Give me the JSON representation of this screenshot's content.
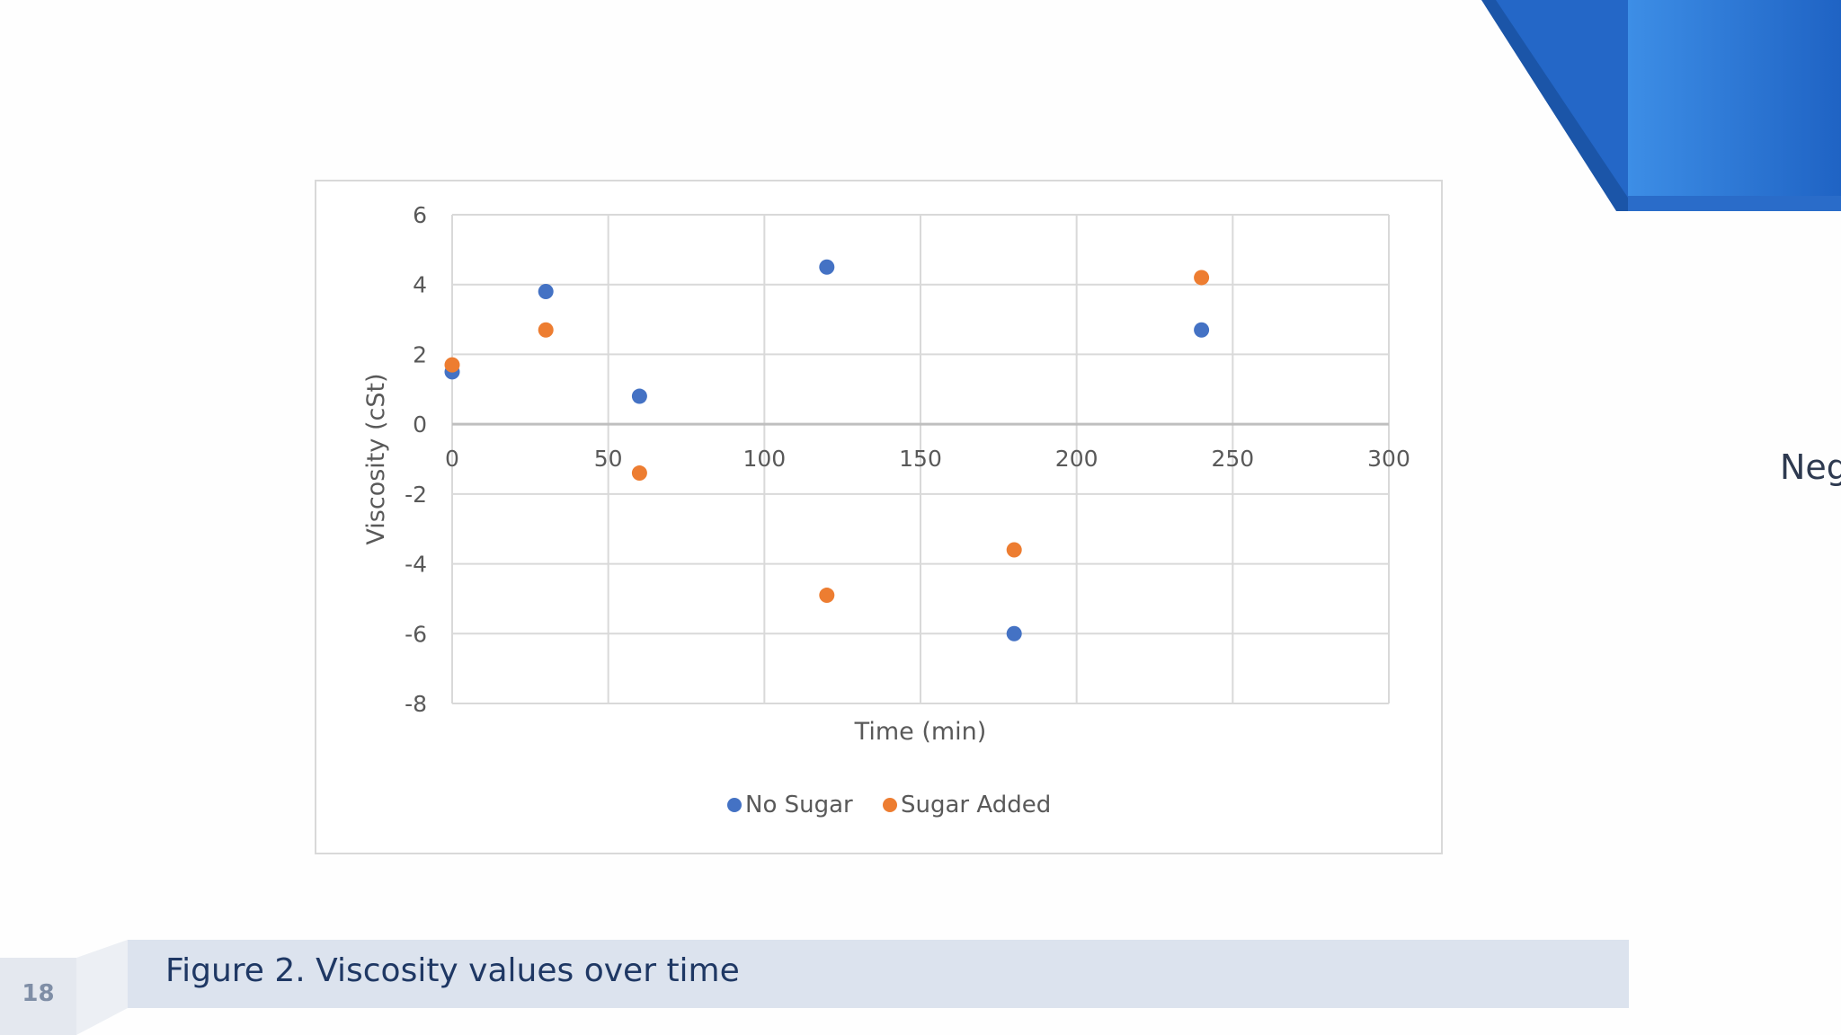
{
  "slide": {
    "page_number": "18",
    "caption": "Figure 2. Viscosity values over time",
    "side_text": "Neg",
    "accent_colors": [
      "#1d5fbf",
      "#2a72d4",
      "#3f90e6"
    ]
  },
  "chart_data": {
    "type": "scatter",
    "title": "",
    "xlabel": "Time (min)",
    "ylabel": "Viscosity (cSt)",
    "xlim": [
      0,
      300
    ],
    "ylim": [
      -8,
      6
    ],
    "xticks": [
      0,
      50,
      100,
      150,
      200,
      250,
      300
    ],
    "yticks": [
      6,
      4,
      2,
      0,
      -2,
      -4,
      -6,
      -8
    ],
    "grid": true,
    "legend_position": "bottom",
    "series": [
      {
        "name": "No Sugar",
        "color": "#4472c4",
        "x": [
          0,
          30,
          60,
          120,
          180,
          240
        ],
        "y": [
          1.5,
          3.8,
          0.8,
          4.5,
          -6.0,
          2.7
        ]
      },
      {
        "name": "Sugar Added",
        "color": "#ed7d31",
        "x": [
          0,
          30,
          60,
          120,
          180,
          240
        ],
        "y": [
          1.7,
          2.7,
          -1.4,
          -4.9,
          -3.6,
          4.2
        ]
      }
    ]
  }
}
